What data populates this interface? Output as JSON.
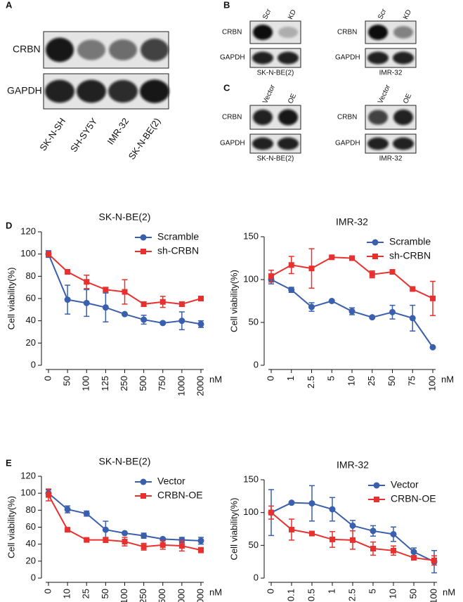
{
  "figure": {
    "labels": [
      "A",
      "B",
      "C",
      "D",
      "E"
    ]
  },
  "blot_a": {
    "rows": [
      "CRBN",
      "GAPDH"
    ],
    "lanes": [
      "SK-N-SH",
      "SH-SY5Y",
      "IMR-32",
      "SK-N-BE(2)"
    ]
  },
  "blot_b": [
    {
      "lanes": [
        "Scr",
        "KD"
      ],
      "rows": [
        "CRBN",
        "GAPDH"
      ],
      "cell_line": "SK-N-BE(2)"
    },
    {
      "lanes": [
        "Scr",
        "KD"
      ],
      "rows": [
        "CRBN",
        "GAPDH"
      ],
      "cell_line": "IMR-32"
    }
  ],
  "blot_c": [
    {
      "lanes": [
        "Vector",
        "OE"
      ],
      "rows": [
        "CRBN",
        "GAPDH"
      ],
      "cell_line": "SK-N-BE(2)"
    },
    {
      "lanes": [
        "Vector",
        "OE"
      ],
      "rows": [
        "CRBN",
        "GAPDH"
      ],
      "cell_line": "IMR-32"
    }
  ],
  "chart_data": [
    {
      "type": "line",
      "title": "SK-N-BE(2)",
      "y_label": "Cell viability(%)",
      "x_unit": "nM",
      "legend": "upper right",
      "categories": [
        "0",
        "50",
        "100",
        "125",
        "250",
        "500",
        "750",
        "1000",
        "2000"
      ],
      "ylim": [
        0,
        120
      ],
      "yticks": [
        0,
        20,
        40,
        60,
        80,
        100,
        120
      ],
      "series": [
        {
          "name": "Scramble",
          "color": "#3a5fad",
          "marker": "circle",
          "values": [
            100,
            59,
            56,
            52,
            46,
            41,
            38,
            40,
            37
          ],
          "errors": [
            3,
            13,
            12,
            13,
            1,
            4,
            1,
            8,
            3
          ]
        },
        {
          "name": "sh-CRBN",
          "color": "#e8312f",
          "marker": "square",
          "values": [
            100,
            84,
            75,
            68,
            66,
            55,
            57,
            55,
            60
          ],
          "errors": [
            2,
            1,
            6,
            2,
            11,
            2,
            5,
            2,
            2
          ]
        }
      ]
    },
    {
      "type": "line",
      "title": "IMR-32",
      "y_label": "Cell viability(%)",
      "x_unit": "nM",
      "legend": "upper right",
      "categories": [
        "0",
        "1",
        "2.5",
        "5",
        "10",
        "25",
        "50",
        "75",
        "100"
      ],
      "ylim": [
        0,
        150
      ],
      "yticks": [
        0,
        50,
        100,
        150
      ],
      "series": [
        {
          "name": "Scramble",
          "color": "#3a5fad",
          "marker": "circle",
          "values": [
            100,
            88,
            68,
            75,
            63,
            56,
            62,
            55,
            21
          ],
          "errors": [
            5,
            3,
            5,
            1,
            4,
            1,
            8,
            15,
            1
          ]
        },
        {
          "name": "sh-CRBN",
          "color": "#e8312f",
          "marker": "square",
          "values": [
            104,
            117,
            113,
            126,
            125,
            106,
            109,
            89,
            78
          ],
          "errors": [
            7,
            10,
            23,
            1,
            1,
            4,
            2,
            1,
            20
          ]
        }
      ]
    },
    {
      "type": "line",
      "title": "SK-N-BE(2)",
      "y_label": "Cell viability(%)",
      "x_unit": "nM",
      "legend": "upper right",
      "categories": [
        "0",
        "10",
        "25",
        "50",
        "100",
        "250",
        "500",
        "1000",
        "2000"
      ],
      "ylim": [
        0,
        120
      ],
      "yticks": [
        0,
        20,
        40,
        60,
        80,
        100,
        120
      ],
      "series": [
        {
          "name": "Vector",
          "color": "#3a5fad",
          "marker": "circle",
          "values": [
            100,
            81,
            76,
            57,
            53,
            50,
            46,
            45,
            44
          ],
          "errors": [
            4,
            4,
            3,
            10,
            1,
            3,
            1,
            3,
            4
          ]
        },
        {
          "name": "CRBN-OE",
          "color": "#e8312f",
          "marker": "square",
          "values": [
            98,
            57,
            45,
            45,
            43,
            37,
            39,
            38,
            33
          ],
          "errors": [
            7,
            1,
            1,
            3,
            5,
            4,
            5,
            6,
            3
          ]
        }
      ]
    },
    {
      "type": "line",
      "title": "IMR-32",
      "y_label": "Cell viability(%)",
      "x_unit": "nM",
      "legend": "upper right",
      "categories": [
        "0",
        "0.1",
        "0.5",
        "1",
        "2.5",
        "5",
        "10",
        "50",
        "100"
      ],
      "ylim": [
        0,
        150
      ],
      "yticks": [
        0,
        50,
        100,
        150
      ],
      "series": [
        {
          "name": "Vector",
          "color": "#3a5fad",
          "marker": "circle",
          "values": [
            100,
            115,
            114,
            105,
            80,
            72,
            67,
            40,
            25
          ],
          "errors": [
            35,
            1,
            27,
            18,
            8,
            8,
            11,
            6,
            17
          ]
        },
        {
          "name": "CRBN-OE",
          "color": "#e8312f",
          "marker": "square",
          "values": [
            100,
            74,
            68,
            59,
            58,
            45,
            42,
            31,
            27
          ],
          "errors": [
            10,
            16,
            3,
            12,
            14,
            10,
            7,
            3,
            7
          ]
        }
      ]
    }
  ]
}
